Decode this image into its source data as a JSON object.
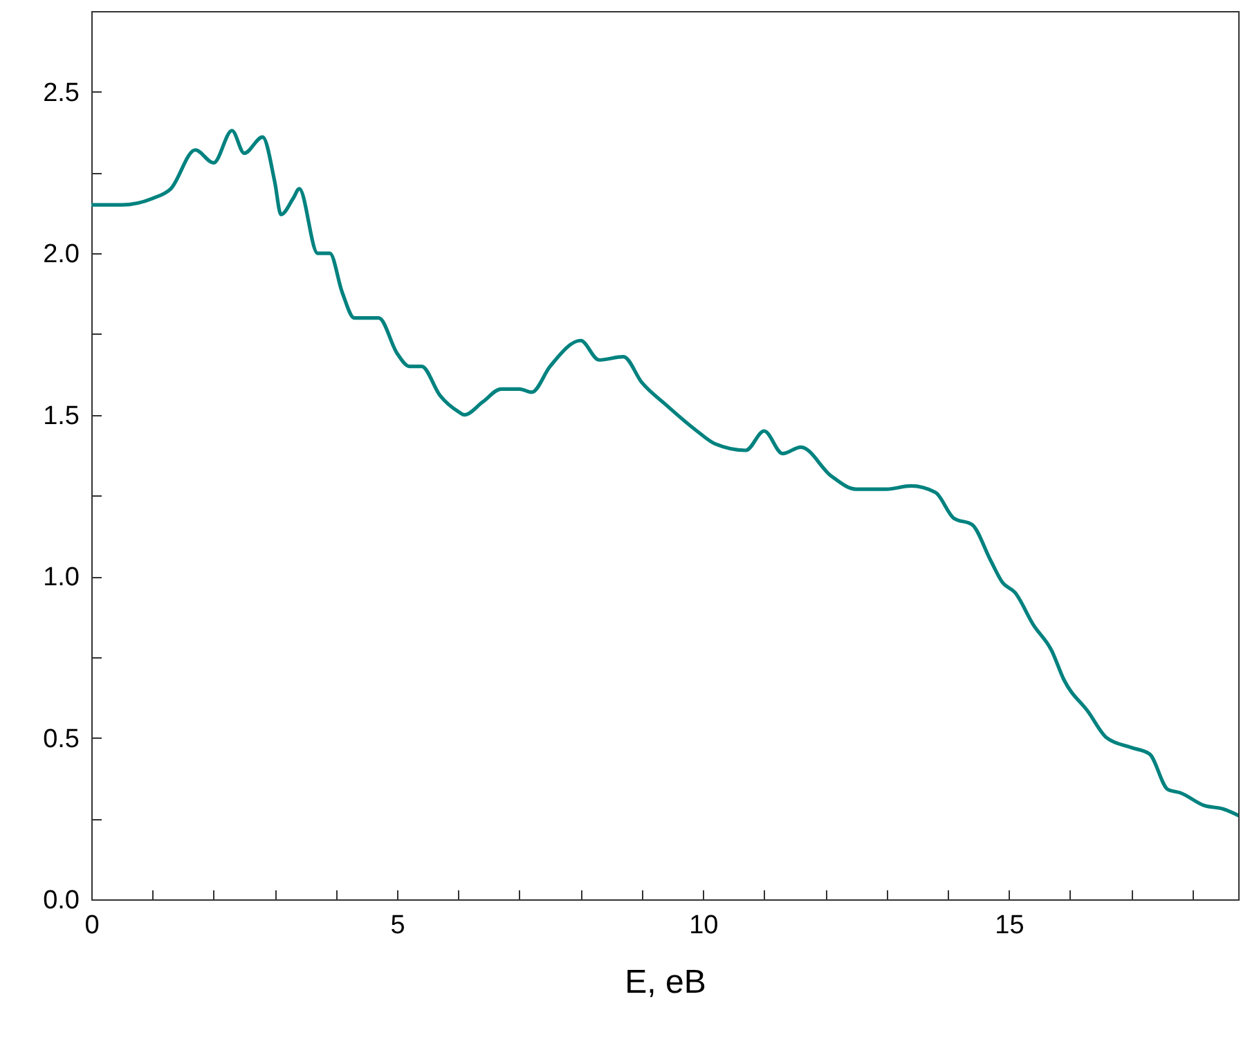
{
  "chart_data": {
    "type": "line",
    "xlabel": "E, eB",
    "x": [
      0,
      0.5,
      1.0,
      1.3,
      1.7,
      2.0,
      2.3,
      2.5,
      2.8,
      3.0,
      3.1,
      3.3,
      3.4,
      3.7,
      3.9,
      4.1,
      4.3,
      4.7,
      5.0,
      5.2,
      5.4,
      5.7,
      6.0,
      6.1,
      6.4,
      6.7,
      7.0,
      7.2,
      7.5,
      8.0,
      8.3,
      8.7,
      9.0,
      9.4,
      9.9,
      10.2,
      10.7,
      11.0,
      11.3,
      11.6,
      12.1,
      12.5,
      13.0,
      13.4,
      13.8,
      14.1,
      14.4,
      14.7,
      14.9,
      15.1,
      15.4,
      15.7,
      15.9,
      16.3,
      16.6,
      17.0,
      17.3,
      17.6,
      17.8,
      18.2,
      18.5,
      18.75
    ],
    "series": [
      {
        "color": "#00827f",
        "values": [
          2.15,
          2.15,
          2.17,
          2.2,
          2.32,
          2.28,
          2.38,
          2.31,
          2.36,
          2.22,
          2.12,
          2.17,
          2.2,
          2.0,
          2.0,
          1.88,
          1.8,
          1.8,
          1.69,
          1.65,
          1.65,
          1.56,
          1.51,
          1.5,
          1.54,
          1.58,
          1.58,
          1.57,
          1.65,
          1.73,
          1.67,
          1.68,
          1.6,
          1.53,
          1.45,
          1.41,
          1.39,
          1.45,
          1.38,
          1.4,
          1.31,
          1.27,
          1.27,
          1.28,
          1.26,
          1.18,
          1.16,
          1.05,
          0.98,
          0.95,
          0.85,
          0.77,
          0.68,
          0.58,
          0.5,
          0.47,
          0.45,
          0.34,
          0.33,
          0.29,
          0.28,
          0.26
        ]
      }
    ],
    "xlim": [
      0,
      18.75
    ],
    "xticks": [
      0,
      {
        "value": 1,
        "label": null
      },
      {
        "value": 2,
        "label": null
      },
      {
        "value": 3,
        "label": null
      },
      {
        "value": 4,
        "label": null
      },
      5,
      {
        "value": 6,
        "label": null
      },
      {
        "value": 7,
        "label": null
      },
      {
        "value": 8,
        "label": null
      },
      {
        "value": 9,
        "label": null
      },
      10,
      {
        "value": 11,
        "label": null
      },
      {
        "value": 12,
        "label": null
      },
      {
        "value": 13,
        "label": null
      },
      {
        "value": 14,
        "label": null
      },
      15,
      {
        "value": 16,
        "label": null
      },
      {
        "value": 17,
        "label": null
      },
      {
        "value": 18,
        "label": null
      }
    ],
    "ylim": [
      0,
      2.75
    ],
    "yticks": [
      {
        "value": 0,
        "label": "0.0"
      },
      {
        "value": 0.25,
        "label": null
      },
      {
        "value": 0.5,
        "label": "0.5"
      },
      {
        "value": 0.75,
        "label": null
      },
      {
        "value": 1,
        "label": "1.0"
      },
      {
        "value": 1.25,
        "label": null
      },
      {
        "value": 1.5,
        "label": "1.5"
      },
      {
        "value": 1.75,
        "label": null
      },
      {
        "value": 2,
        "label": "2.0"
      },
      {
        "value": 2.25,
        "label": null
      },
      {
        "value": 2.5,
        "label": "2.5"
      }
    ],
    "grid": false,
    "marker": "none",
    "line_style": "solid"
  }
}
